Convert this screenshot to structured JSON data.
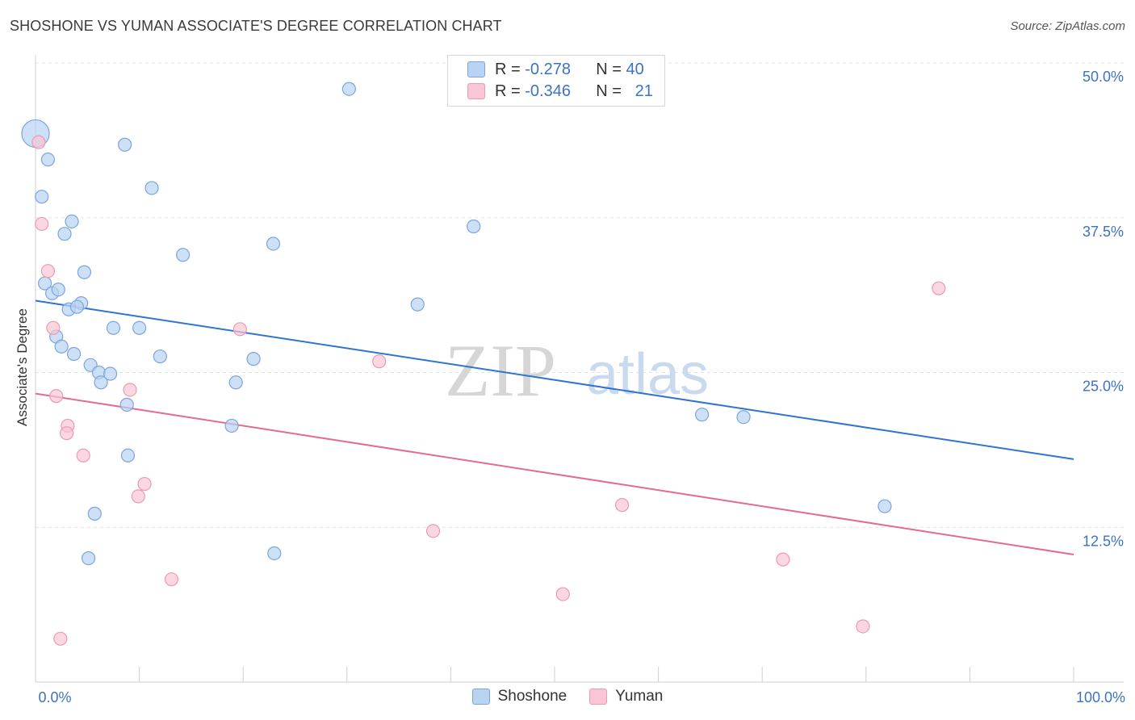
{
  "header": {
    "title": "SHOSHONE VS YUMAN ASSOCIATE'S DEGREE CORRELATION CHART",
    "source": "Source: ZipAtlas.com"
  },
  "watermark": {
    "zip": "ZIP",
    "atlas": "atlas"
  },
  "legend_top": [
    {
      "r_label": "R =",
      "r_value": "-0.278",
      "n_label": "N =",
      "n_value": "40"
    },
    {
      "r_label": "R =",
      "r_value": "-0.346",
      "n_label": "N =",
      "n_value": "21"
    }
  ],
  "legend_bottom": [
    {
      "label": "Shoshone"
    },
    {
      "label": "Yuman"
    }
  ],
  "colors": {
    "shoshone_fill": "#b9d3f2",
    "shoshone_stroke": "#7aa6dc",
    "shoshone_line": "#2f74d0",
    "yuman_fill": "#f8c6d4",
    "yuman_stroke": "#ec9ab2",
    "yuman_line": "#e46a94",
    "axis_text": "#3b73c4",
    "grid": "#e3e3e3"
  },
  "chart_data": {
    "type": "scatter",
    "title": "SHOSHONE VS YUMAN ASSOCIATE'S DEGREE CORRELATION CHART",
    "xlabel": "",
    "ylabel": "Associate's Degree",
    "xlim": [
      0,
      100
    ],
    "ylim": [
      0,
      50
    ],
    "x_tick_labels": [
      "0.0%",
      "100.0%"
    ],
    "y_ticks": [
      12.5,
      25.0,
      37.5,
      50.0
    ],
    "y_tick_labels": [
      "12.5%",
      "25.0%",
      "37.5%",
      "50.0%"
    ],
    "grid": true,
    "series": [
      {
        "name": "Shoshone",
        "r": -0.278,
        "n": 40,
        "trend": {
          "x": [
            0,
            100
          ],
          "y": [
            30.8,
            18.0
          ]
        },
        "points": [
          {
            "x": 0.0,
            "y": 44.3,
            "big": true
          },
          {
            "x": 1.2,
            "y": 42.2
          },
          {
            "x": 0.6,
            "y": 39.2
          },
          {
            "x": 3.5,
            "y": 37.2
          },
          {
            "x": 2.8,
            "y": 36.2
          },
          {
            "x": 0.9,
            "y": 32.2
          },
          {
            "x": 1.6,
            "y": 31.4
          },
          {
            "x": 2.2,
            "y": 31.7
          },
          {
            "x": 4.7,
            "y": 33.1
          },
          {
            "x": 3.2,
            "y": 30.1
          },
          {
            "x": 4.4,
            "y": 30.6
          },
          {
            "x": 4.0,
            "y": 30.3
          },
          {
            "x": 2.0,
            "y": 27.9
          },
          {
            "x": 2.5,
            "y": 27.1
          },
          {
            "x": 3.7,
            "y": 26.5
          },
          {
            "x": 5.3,
            "y": 25.6
          },
          {
            "x": 6.1,
            "y": 25.0
          },
          {
            "x": 6.3,
            "y": 24.2
          },
          {
            "x": 7.2,
            "y": 24.9
          },
          {
            "x": 7.5,
            "y": 28.6
          },
          {
            "x": 10.0,
            "y": 28.6
          },
          {
            "x": 8.6,
            "y": 43.4
          },
          {
            "x": 11.2,
            "y": 39.9
          },
          {
            "x": 8.8,
            "y": 22.4
          },
          {
            "x": 12.0,
            "y": 26.3
          },
          {
            "x": 14.2,
            "y": 34.5
          },
          {
            "x": 18.9,
            "y": 20.7
          },
          {
            "x": 19.3,
            "y": 24.2
          },
          {
            "x": 21.0,
            "y": 26.1
          },
          {
            "x": 22.9,
            "y": 35.4
          },
          {
            "x": 30.2,
            "y": 47.9
          },
          {
            "x": 36.8,
            "y": 30.5
          },
          {
            "x": 42.2,
            "y": 36.8
          },
          {
            "x": 8.9,
            "y": 18.3
          },
          {
            "x": 5.7,
            "y": 13.6
          },
          {
            "x": 5.1,
            "y": 10.0
          },
          {
            "x": 23.0,
            "y": 10.4
          },
          {
            "x": 64.2,
            "y": 21.6
          },
          {
            "x": 68.2,
            "y": 21.4
          },
          {
            "x": 81.8,
            "y": 14.2
          }
        ]
      },
      {
        "name": "Yuman",
        "r": -0.346,
        "n": 21,
        "trend": {
          "x": [
            0,
            100
          ],
          "y": [
            23.3,
            10.3
          ]
        },
        "points": [
          {
            "x": 0.3,
            "y": 43.6
          },
          {
            "x": 0.6,
            "y": 37.0
          },
          {
            "x": 1.2,
            "y": 33.2
          },
          {
            "x": 1.7,
            "y": 28.6
          },
          {
            "x": 2.0,
            "y": 23.1
          },
          {
            "x": 3.1,
            "y": 20.7
          },
          {
            "x": 3.0,
            "y": 20.1
          },
          {
            "x": 4.6,
            "y": 18.3
          },
          {
            "x": 9.1,
            "y": 23.6
          },
          {
            "x": 10.5,
            "y": 16.0
          },
          {
            "x": 9.9,
            "y": 15.0
          },
          {
            "x": 13.1,
            "y": 8.3
          },
          {
            "x": 19.7,
            "y": 28.5
          },
          {
            "x": 33.1,
            "y": 25.9
          },
          {
            "x": 38.3,
            "y": 12.2
          },
          {
            "x": 2.4,
            "y": 3.5
          },
          {
            "x": 50.8,
            "y": 7.1
          },
          {
            "x": 56.5,
            "y": 14.3
          },
          {
            "x": 72.0,
            "y": 9.9
          },
          {
            "x": 79.7,
            "y": 4.5
          },
          {
            "x": 87.0,
            "y": 31.8
          }
        ]
      }
    ]
  }
}
